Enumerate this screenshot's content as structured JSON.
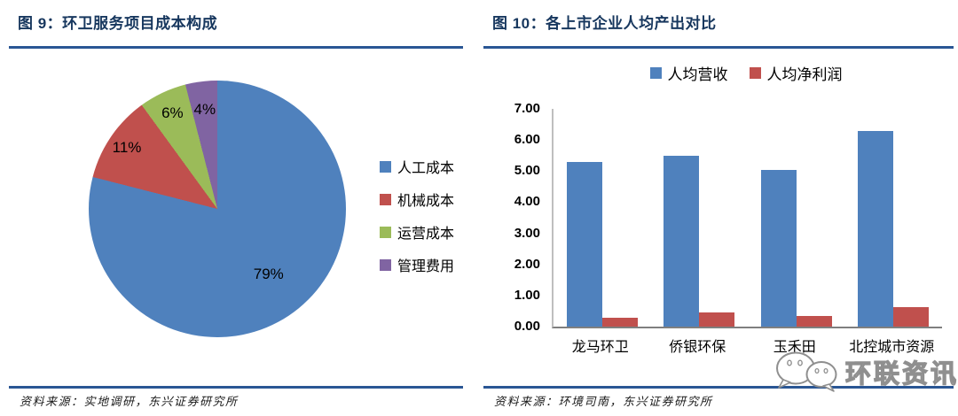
{
  "chart_data": [
    {
      "type": "pie",
      "title": "图 9：环卫服务项目成本构成",
      "labels": [
        "人工成本",
        "机械成本",
        "运营成本",
        "管理费用"
      ],
      "values": [
        79,
        11,
        6,
        4
      ],
      "data_labels": [
        "79%",
        "11%",
        "6%",
        "4%"
      ],
      "colors": [
        "#4F81BD",
        "#C0504D",
        "#9BBB59",
        "#8064A2"
      ],
      "start_angle_deg": 0,
      "direction": "clockwise",
      "legend_position": "right",
      "source": "资料来源：实地调研，东兴证券研究所"
    },
    {
      "type": "bar",
      "title": "图 10：各上市企业人均产出对比",
      "categories": [
        "龙马环卫",
        "侨银环保",
        "玉禾田",
        "北控城市资源"
      ],
      "series": [
        {
          "name": "人均营收",
          "color": "#4F81BD",
          "values": [
            5.3,
            5.48,
            5.03,
            6.28
          ]
        },
        {
          "name": "人均净利润",
          "color": "#C0504D",
          "values": [
            0.28,
            0.47,
            0.33,
            0.62
          ]
        }
      ],
      "ylim": [
        0,
        7
      ],
      "ytick_labels": [
        "0.00",
        "1.00",
        "2.00",
        "3.00",
        "4.00",
        "5.00",
        "6.00",
        "7.00"
      ],
      "grid": false,
      "legend_position": "top",
      "source": "资料来源：环境司南，东兴证券研究所"
    }
  ],
  "watermark": {
    "text": "环联资讯",
    "icon": "wechat-chat-bubbles-icon"
  },
  "colors": {
    "title_navy": "#17375E",
    "rule_blue": "#2A5694",
    "series_blue": "#4F81BD",
    "series_red": "#C0504D",
    "series_green": "#9BBB59",
    "series_purple": "#8064A2",
    "axis_gray": "#BFBFBF",
    "baseline_gray": "#7F7F7F"
  }
}
